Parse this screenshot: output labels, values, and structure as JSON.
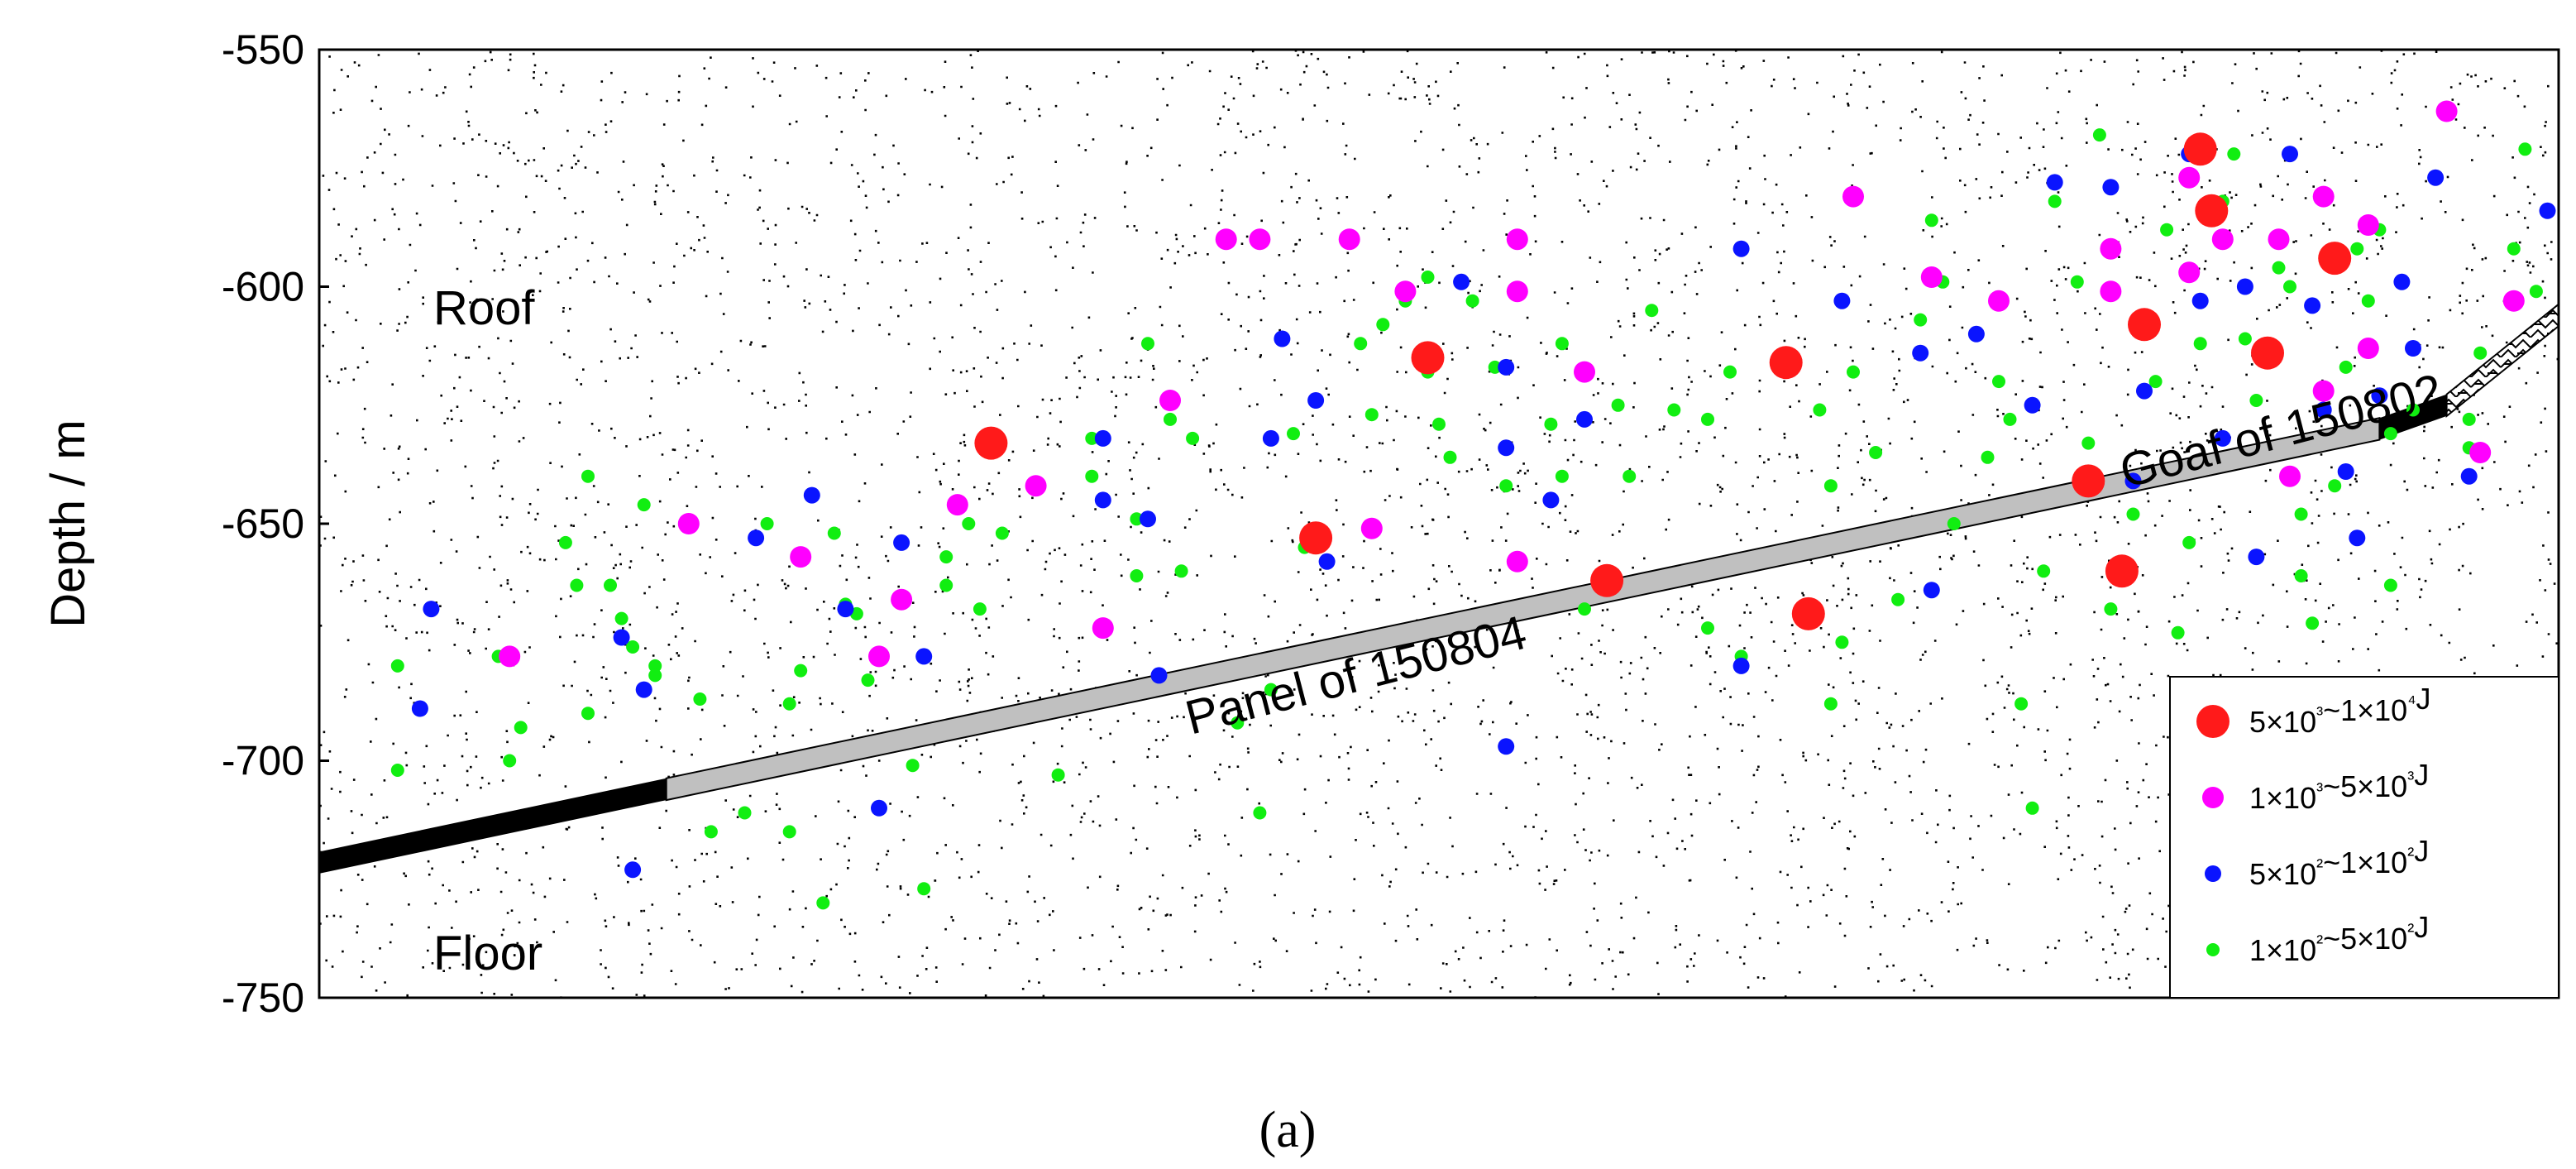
{
  "chart_data": {
    "type": "scatter",
    "ylabel": "Depth / m",
    "ylim": [
      -750,
      -550
    ],
    "yticks": [
      -550,
      -600,
      -650,
      -700,
      -750
    ],
    "xlim": [
      0,
      100
    ],
    "grid": false,
    "legend_position": "bottom-right",
    "caption": "(a)",
    "regions": {
      "roof": "Roof",
      "floor": "Floor",
      "panel": "Panel of 150804",
      "goaf": "Goaf of 150802"
    },
    "seam": {
      "start": [
        0,
        -721.5
      ],
      "panel_start": [
        15.5,
        -706
      ],
      "panel_end": [
        92,
        -630
      ],
      "goaf_start": [
        95,
        -625
      ],
      "end": [
        100,
        -606
      ],
      "thickness_m": 4.6
    },
    "series": [
      {
        "name": "5×10³~1×10⁴J",
        "color": "#ff1a1a",
        "size": 20,
        "points": [
          [
            30,
            -633
          ],
          [
            44.5,
            -653
          ],
          [
            49.5,
            -615
          ],
          [
            57.5,
            -662
          ],
          [
            65.5,
            -616
          ],
          [
            66.5,
            -669
          ],
          [
            79,
            -641
          ],
          [
            80.5,
            -660
          ],
          [
            81.5,
            -608
          ],
          [
            84,
            -571
          ],
          [
            84.5,
            -584
          ],
          [
            87,
            -614
          ],
          [
            90,
            -594
          ]
        ]
      },
      {
        "name": "1×10³~5×10³J",
        "color": "#ff00ff",
        "size": 13,
        "points": [
          [
            16.5,
            -650
          ],
          [
            21.5,
            -657
          ],
          [
            8.5,
            -678
          ],
          [
            25,
            -678
          ],
          [
            28.5,
            -646
          ],
          [
            32,
            -642
          ],
          [
            35,
            -672
          ],
          [
            38,
            -624
          ],
          [
            40.5,
            -590
          ],
          [
            42,
            -590
          ],
          [
            46,
            -590
          ],
          [
            48.5,
            -601
          ],
          [
            53.5,
            -590
          ],
          [
            53.5,
            -601
          ],
          [
            56.5,
            -618
          ],
          [
            53.5,
            -658
          ],
          [
            47,
            -651
          ],
          [
            26,
            -666
          ],
          [
            85,
            -590
          ],
          [
            87.5,
            -590
          ],
          [
            89.5,
            -581
          ],
          [
            89.5,
            -622
          ],
          [
            88,
            -640
          ],
          [
            91.5,
            -587
          ],
          [
            91.5,
            -613
          ],
          [
            95,
            -563
          ],
          [
            96.5,
            -635
          ],
          [
            98,
            -603
          ],
          [
            68.5,
            -581
          ],
          [
            72,
            -598
          ],
          [
            75,
            -603
          ],
          [
            80,
            -592
          ],
          [
            80,
            -601
          ],
          [
            83.5,
            -577
          ],
          [
            83.5,
            -597
          ]
        ]
      },
      {
        "name": "5×10²~1×10²J",
        "color": "#0a14ff",
        "size": 10,
        "points": [
          [
            5,
            -668
          ],
          [
            4.5,
            -689
          ],
          [
            13.5,
            -674
          ],
          [
            14.5,
            -685
          ],
          [
            19.5,
            -653
          ],
          [
            22,
            -644
          ],
          [
            23.5,
            -668
          ],
          [
            25,
            -710
          ],
          [
            26,
            -654
          ],
          [
            27,
            -678
          ],
          [
            14,
            -723
          ],
          [
            35,
            -645
          ],
          [
            35,
            -632
          ],
          [
            37,
            -649
          ],
          [
            37.5,
            -682
          ],
          [
            42.5,
            -632
          ],
          [
            43,
            -611
          ],
          [
            44.5,
            -624
          ],
          [
            45,
            -658
          ],
          [
            51,
            -599
          ],
          [
            53,
            -617
          ],
          [
            53,
            -634
          ],
          [
            53,
            -697
          ],
          [
            55,
            -645
          ],
          [
            56.5,
            -628
          ],
          [
            63.5,
            -592
          ],
          [
            63.5,
            -680
          ],
          [
            68,
            -603
          ],
          [
            71.5,
            -614
          ],
          [
            72,
            -664
          ],
          [
            74,
            -610
          ],
          [
            76.5,
            -625
          ],
          [
            77.5,
            -578
          ],
          [
            80,
            -579
          ],
          [
            81.5,
            -622
          ],
          [
            81,
            -641
          ],
          [
            83.5,
            -572
          ],
          [
            84,
            -603
          ],
          [
            85,
            -632
          ],
          [
            86,
            -600
          ],
          [
            86.5,
            -657
          ],
          [
            88,
            -572
          ],
          [
            89,
            -604
          ],
          [
            89.5,
            -626
          ],
          [
            90.5,
            -639
          ],
          [
            91,
            -653
          ],
          [
            92,
            -623
          ],
          [
            93.5,
            -613
          ],
          [
            94.5,
            -577
          ],
          [
            96,
            -640
          ],
          [
            99.5,
            -584
          ],
          [
            93,
            -599
          ]
        ]
      },
      {
        "name": "1×10²~5×10²J",
        "color": "#11ee11",
        "size": 8,
        "points": [
          [
            3.5,
            -680
          ],
          [
            3.5,
            -702
          ],
          [
            8,
            -678
          ],
          [
            8.5,
            -700
          ],
          [
            11,
            -654
          ],
          [
            11.5,
            -663
          ],
          [
            12,
            -640
          ],
          [
            13,
            -663
          ],
          [
            13.5,
            -670
          ],
          [
            14,
            -676
          ],
          [
            14.5,
            -646
          ],
          [
            15,
            -680
          ],
          [
            15,
            -682
          ],
          [
            12,
            -690
          ],
          [
            9,
            -693
          ],
          [
            17,
            -687
          ],
          [
            17.5,
            -715
          ],
          [
            20,
            -650
          ],
          [
            21,
            -688
          ],
          [
            21.5,
            -681
          ],
          [
            23,
            -652
          ],
          [
            23.5,
            -667
          ],
          [
            24,
            -669
          ],
          [
            24.5,
            -683
          ],
          [
            19,
            -711
          ],
          [
            21,
            -715
          ],
          [
            22.5,
            -730
          ],
          [
            26.5,
            -701
          ],
          [
            27,
            -727
          ],
          [
            28,
            -663
          ],
          [
            28,
            -657
          ],
          [
            29,
            -650
          ],
          [
            29.5,
            -668
          ],
          [
            30.5,
            -652
          ],
          [
            33,
            -703
          ],
          [
            34.5,
            -632
          ],
          [
            34.5,
            -640
          ],
          [
            36.5,
            -649
          ],
          [
            36.5,
            -661
          ],
          [
            37,
            -612
          ],
          [
            38,
            -628
          ],
          [
            38.5,
            -660
          ],
          [
            39,
            -632
          ],
          [
            41,
            -692
          ],
          [
            42,
            -711
          ],
          [
            42.5,
            -685
          ],
          [
            43.5,
            -631
          ],
          [
            44,
            -655
          ],
          [
            46.5,
            -612
          ],
          [
            47,
            -627
          ],
          [
            47.5,
            -608
          ],
          [
            48.5,
            -603
          ],
          [
            49.5,
            -598
          ],
          [
            49.5,
            -618
          ],
          [
            50,
            -629
          ],
          [
            50.5,
            -636
          ],
          [
            51.5,
            -603
          ],
          [
            52.5,
            -617
          ],
          [
            53,
            -642
          ],
          [
            55,
            -629
          ],
          [
            55.5,
            -612
          ],
          [
            55.5,
            -640
          ],
          [
            56.5,
            -668
          ],
          [
            58,
            -625
          ],
          [
            58.5,
            -640
          ],
          [
            59.5,
            -605
          ],
          [
            60.5,
            -626
          ],
          [
            62,
            -628
          ],
          [
            62,
            -672
          ],
          [
            63,
            -618
          ],
          [
            63.5,
            -678
          ],
          [
            67,
            -626
          ],
          [
            67.5,
            -642
          ],
          [
            67.5,
            -688
          ],
          [
            68,
            -675
          ],
          [
            68.5,
            -618
          ],
          [
            69.5,
            -635
          ],
          [
            70.5,
            -666
          ],
          [
            71.5,
            -607
          ],
          [
            72,
            -586
          ],
          [
            72.5,
            -599
          ],
          [
            73,
            -650
          ],
          [
            74.5,
            -636
          ],
          [
            75,
            -620
          ],
          [
            75.5,
            -628
          ],
          [
            76,
            -688
          ],
          [
            76.5,
            -710
          ],
          [
            77,
            -660
          ],
          [
            77.5,
            -582
          ],
          [
            78.5,
            -599
          ],
          [
            79,
            -633
          ],
          [
            79.5,
            -568
          ],
          [
            80,
            -668
          ],
          [
            81,
            -648
          ],
          [
            82,
            -620
          ],
          [
            82.5,
            -588
          ],
          [
            83,
            -673
          ],
          [
            83.5,
            -654
          ],
          [
            84,
            -612
          ],
          [
            85,
            -582
          ],
          [
            85.5,
            -572
          ],
          [
            86,
            -611
          ],
          [
            86.5,
            -624
          ],
          [
            87.5,
            -596
          ],
          [
            88,
            -600
          ],
          [
            88.5,
            -648
          ],
          [
            88.5,
            -661
          ],
          [
            89,
            -671
          ],
          [
            90,
            -642
          ],
          [
            90.5,
            -617
          ],
          [
            91,
            -592
          ],
          [
            91.5,
            -603
          ],
          [
            92,
            -588
          ],
          [
            92.5,
            -631
          ],
          [
            92.5,
            -663
          ],
          [
            93.5,
            -626
          ],
          [
            96,
            -634
          ],
          [
            96.5,
            -614
          ],
          [
            98,
            -592
          ],
          [
            98.5,
            -571
          ],
          [
            99,
            -601
          ],
          [
            96,
            -628
          ]
        ]
      }
    ]
  }
}
